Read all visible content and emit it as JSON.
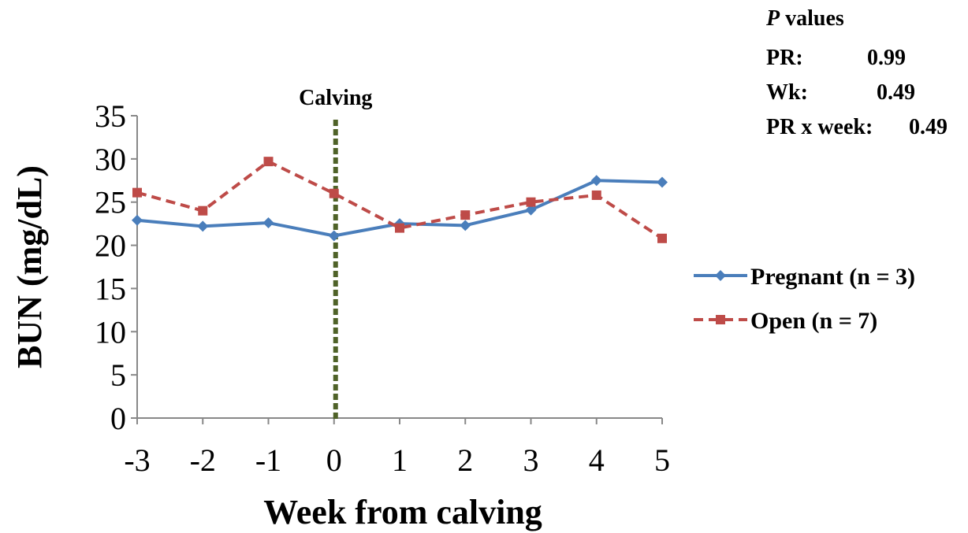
{
  "chart_data": {
    "type": "line",
    "title": "",
    "xlabel": "Week from calving",
    "ylabel": "BUN (mg/dL)",
    "x": [
      -3,
      -2,
      -1,
      0,
      1,
      2,
      3,
      4,
      5
    ],
    "xlim": [
      -3,
      5
    ],
    "ylim": [
      0,
      35
    ],
    "yticks": [
      0,
      5,
      10,
      15,
      20,
      25,
      30,
      35
    ],
    "xtick_labels": [
      "-3",
      "-2",
      "-1",
      "0",
      "1",
      "2",
      "3",
      "4",
      "5"
    ],
    "ytick_labels": [
      "0",
      "5",
      "10",
      "15",
      "20",
      "25",
      "30",
      "35"
    ],
    "grid": false,
    "legend_position": "right",
    "series": [
      {
        "name": "Pregnant (n = 3)",
        "color": "#4a7ebb",
        "line_style": "solid",
        "marker": "diamond",
        "values": [
          22.9,
          22.2,
          22.6,
          21.1,
          22.5,
          22.3,
          24.1,
          27.5,
          27.3
        ]
      },
      {
        "name": "Open (n = 7)",
        "color": "#be4b48",
        "line_style": "dashed",
        "marker": "square",
        "values": [
          26.1,
          24.0,
          29.7,
          26.0,
          22.0,
          23.5,
          25.0,
          25.8,
          20.8
        ]
      }
    ],
    "annotations": {
      "calving": {
        "label": "Calving",
        "x": 0,
        "color": "#4f6228"
      },
      "p_values": {
        "heading_italic": "P",
        "heading_rest": " values",
        "rows": [
          {
            "label": "PR:",
            "value": "0.99"
          },
          {
            "label": "Wk:",
            "value": "0.49"
          },
          {
            "label": "PR x week:",
            "value": "0.49"
          }
        ]
      }
    }
  }
}
